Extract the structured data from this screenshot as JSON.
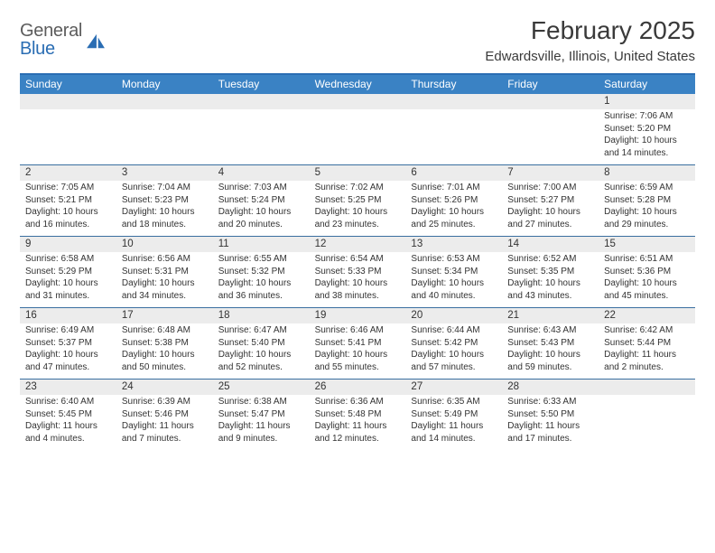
{
  "colors": {
    "header_bg": "#3a82c4",
    "accent_border": "#2a6db3",
    "row_divider": "#3a6fa0",
    "daynum_band_bg": "#ececec",
    "text_primary": "#333333",
    "text_muted": "#5c5c5c",
    "logo_blue": "#2a6db3",
    "page_bg": "#ffffff",
    "weekday_text": "#ffffff"
  },
  "typography": {
    "title_fontsize": 28,
    "location_fontsize": 15,
    "weekday_fontsize": 12,
    "daynum_fontsize": 11.5,
    "cell_fontsize": 10,
    "logo_fontsize": 20
  },
  "logo": {
    "general": "General",
    "blue": "Blue"
  },
  "title": "February 2025",
  "location": "Edwardsville, Illinois, United States",
  "weekdays": [
    "Sunday",
    "Monday",
    "Tuesday",
    "Wednesday",
    "Thursday",
    "Friday",
    "Saturday"
  ],
  "calendar": {
    "type": "table",
    "columns": 7,
    "weeks": [
      [
        {
          "day": "",
          "sunrise": "",
          "sunset": "",
          "daylight": ""
        },
        {
          "day": "",
          "sunrise": "",
          "sunset": "",
          "daylight": ""
        },
        {
          "day": "",
          "sunrise": "",
          "sunset": "",
          "daylight": ""
        },
        {
          "day": "",
          "sunrise": "",
          "sunset": "",
          "daylight": ""
        },
        {
          "day": "",
          "sunrise": "",
          "sunset": "",
          "daylight": ""
        },
        {
          "day": "",
          "sunrise": "",
          "sunset": "",
          "daylight": ""
        },
        {
          "day": "1",
          "sunrise": "Sunrise: 7:06 AM",
          "sunset": "Sunset: 5:20 PM",
          "daylight": "Daylight: 10 hours and 14 minutes."
        }
      ],
      [
        {
          "day": "2",
          "sunrise": "Sunrise: 7:05 AM",
          "sunset": "Sunset: 5:21 PM",
          "daylight": "Daylight: 10 hours and 16 minutes."
        },
        {
          "day": "3",
          "sunrise": "Sunrise: 7:04 AM",
          "sunset": "Sunset: 5:23 PM",
          "daylight": "Daylight: 10 hours and 18 minutes."
        },
        {
          "day": "4",
          "sunrise": "Sunrise: 7:03 AM",
          "sunset": "Sunset: 5:24 PM",
          "daylight": "Daylight: 10 hours and 20 minutes."
        },
        {
          "day": "5",
          "sunrise": "Sunrise: 7:02 AM",
          "sunset": "Sunset: 5:25 PM",
          "daylight": "Daylight: 10 hours and 23 minutes."
        },
        {
          "day": "6",
          "sunrise": "Sunrise: 7:01 AM",
          "sunset": "Sunset: 5:26 PM",
          "daylight": "Daylight: 10 hours and 25 minutes."
        },
        {
          "day": "7",
          "sunrise": "Sunrise: 7:00 AM",
          "sunset": "Sunset: 5:27 PM",
          "daylight": "Daylight: 10 hours and 27 minutes."
        },
        {
          "day": "8",
          "sunrise": "Sunrise: 6:59 AM",
          "sunset": "Sunset: 5:28 PM",
          "daylight": "Daylight: 10 hours and 29 minutes."
        }
      ],
      [
        {
          "day": "9",
          "sunrise": "Sunrise: 6:58 AM",
          "sunset": "Sunset: 5:29 PM",
          "daylight": "Daylight: 10 hours and 31 minutes."
        },
        {
          "day": "10",
          "sunrise": "Sunrise: 6:56 AM",
          "sunset": "Sunset: 5:31 PM",
          "daylight": "Daylight: 10 hours and 34 minutes."
        },
        {
          "day": "11",
          "sunrise": "Sunrise: 6:55 AM",
          "sunset": "Sunset: 5:32 PM",
          "daylight": "Daylight: 10 hours and 36 minutes."
        },
        {
          "day": "12",
          "sunrise": "Sunrise: 6:54 AM",
          "sunset": "Sunset: 5:33 PM",
          "daylight": "Daylight: 10 hours and 38 minutes."
        },
        {
          "day": "13",
          "sunrise": "Sunrise: 6:53 AM",
          "sunset": "Sunset: 5:34 PM",
          "daylight": "Daylight: 10 hours and 40 minutes."
        },
        {
          "day": "14",
          "sunrise": "Sunrise: 6:52 AM",
          "sunset": "Sunset: 5:35 PM",
          "daylight": "Daylight: 10 hours and 43 minutes."
        },
        {
          "day": "15",
          "sunrise": "Sunrise: 6:51 AM",
          "sunset": "Sunset: 5:36 PM",
          "daylight": "Daylight: 10 hours and 45 minutes."
        }
      ],
      [
        {
          "day": "16",
          "sunrise": "Sunrise: 6:49 AM",
          "sunset": "Sunset: 5:37 PM",
          "daylight": "Daylight: 10 hours and 47 minutes."
        },
        {
          "day": "17",
          "sunrise": "Sunrise: 6:48 AM",
          "sunset": "Sunset: 5:38 PM",
          "daylight": "Daylight: 10 hours and 50 minutes."
        },
        {
          "day": "18",
          "sunrise": "Sunrise: 6:47 AM",
          "sunset": "Sunset: 5:40 PM",
          "daylight": "Daylight: 10 hours and 52 minutes."
        },
        {
          "day": "19",
          "sunrise": "Sunrise: 6:46 AM",
          "sunset": "Sunset: 5:41 PM",
          "daylight": "Daylight: 10 hours and 55 minutes."
        },
        {
          "day": "20",
          "sunrise": "Sunrise: 6:44 AM",
          "sunset": "Sunset: 5:42 PM",
          "daylight": "Daylight: 10 hours and 57 minutes."
        },
        {
          "day": "21",
          "sunrise": "Sunrise: 6:43 AM",
          "sunset": "Sunset: 5:43 PM",
          "daylight": "Daylight: 10 hours and 59 minutes."
        },
        {
          "day": "22",
          "sunrise": "Sunrise: 6:42 AM",
          "sunset": "Sunset: 5:44 PM",
          "daylight": "Daylight: 11 hours and 2 minutes."
        }
      ],
      [
        {
          "day": "23",
          "sunrise": "Sunrise: 6:40 AM",
          "sunset": "Sunset: 5:45 PM",
          "daylight": "Daylight: 11 hours and 4 minutes."
        },
        {
          "day": "24",
          "sunrise": "Sunrise: 6:39 AM",
          "sunset": "Sunset: 5:46 PM",
          "daylight": "Daylight: 11 hours and 7 minutes."
        },
        {
          "day": "25",
          "sunrise": "Sunrise: 6:38 AM",
          "sunset": "Sunset: 5:47 PM",
          "daylight": "Daylight: 11 hours and 9 minutes."
        },
        {
          "day": "26",
          "sunrise": "Sunrise: 6:36 AM",
          "sunset": "Sunset: 5:48 PM",
          "daylight": "Daylight: 11 hours and 12 minutes."
        },
        {
          "day": "27",
          "sunrise": "Sunrise: 6:35 AM",
          "sunset": "Sunset: 5:49 PM",
          "daylight": "Daylight: 11 hours and 14 minutes."
        },
        {
          "day": "28",
          "sunrise": "Sunrise: 6:33 AM",
          "sunset": "Sunset: 5:50 PM",
          "daylight": "Daylight: 11 hours and 17 minutes."
        },
        {
          "day": "",
          "sunrise": "",
          "sunset": "",
          "daylight": ""
        }
      ]
    ]
  }
}
